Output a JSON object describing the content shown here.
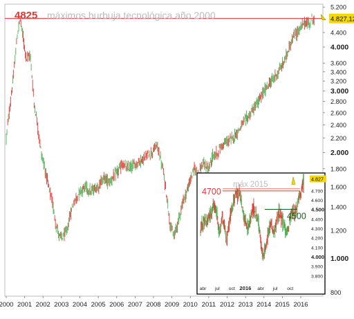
{
  "chart_data": [
    {
      "type": "candlestick",
      "scale": "log",
      "ylim": [
        780,
        5300
      ],
      "y_ticks": [
        "5.200",
        "4.800",
        "4.400",
        "4.000",
        "3.600",
        "3.400",
        "3.200",
        "3.000",
        "2.800",
        "2.600",
        "2.400",
        "2.200",
        "2.000",
        "1.800",
        "1.600",
        "1.400",
        "1.200",
        "1.000",
        "800"
      ],
      "y_ticks_bold": [
        "4.000",
        "3.000",
        "2.000",
        "1.000"
      ],
      "x_ticks": [
        "2000",
        "2001",
        "2002",
        "2003",
        "2004",
        "2005",
        "2006",
        "2007",
        "2008",
        "2009",
        "2010",
        "2011",
        "2012",
        "2013",
        "2014",
        "2015",
        "2016"
      ],
      "x_range": [
        2000.0,
        2016.75
      ],
      "approx_series": {
        "x": [
          2000.0,
          2000.2,
          2000.4,
          2000.6,
          2000.75,
          2000.9,
          2001.1,
          2001.3,
          2001.5,
          2001.7,
          2001.9,
          2002.1,
          2002.3,
          2002.5,
          2002.7,
          2002.9,
          2003.1,
          2003.3,
          2003.5,
          2003.7,
          2004.0,
          2004.3,
          2004.6,
          2005.0,
          2005.3,
          2005.6,
          2006.0,
          2006.3,
          2006.6,
          2007.0,
          2007.3,
          2007.6,
          2007.9,
          2008.2,
          2008.5,
          2008.8,
          2008.9,
          2009.1,
          2009.3,
          2009.6,
          2009.9,
          2010.2,
          2010.45,
          2010.7,
          2011.0,
          2011.2,
          2011.5,
          2011.7,
          2012.0,
          2012.3,
          2012.6,
          2012.9,
          2013.2,
          2013.5,
          2013.8,
          2014.1,
          2014.4,
          2014.7,
          2015.0,
          2015.2,
          2015.4,
          2015.6,
          2015.8,
          2016.0,
          2016.2,
          2016.4,
          2016.6,
          2016.75
        ],
        "y": [
          2200,
          2700,
          3300,
          4300,
          4825,
          4300,
          3700,
          3800,
          2800,
          2400,
          2000,
          1800,
          1600,
          1450,
          1250,
          1150,
          1150,
          1200,
          1350,
          1450,
          1550,
          1600,
          1550,
          1600,
          1700,
          1650,
          1750,
          1850,
          1800,
          1850,
          1900,
          1950,
          2000,
          2100,
          1800,
          1400,
          1250,
          1150,
          1250,
          1450,
          1600,
          1800,
          1750,
          1850,
          1800,
          1950,
          2000,
          2100,
          2150,
          2200,
          2300,
          2450,
          2550,
          2700,
          2850,
          3050,
          3200,
          3350,
          3550,
          3750,
          4050,
          4250,
          4400,
          4550,
          4700,
          4650,
          4800,
          4827
        ]
      },
      "reference_line": {
        "value": 4825,
        "color": "#e53935"
      },
      "annotation": {
        "value_label": "4825",
        "text": "máximos burbuja tecnológica año 2000"
      },
      "price_marker": {
        "label": "4.827,12",
        "color": "#f5d800"
      }
    },
    {
      "type": "candlestick",
      "ylim": [
        3740,
        4860
      ],
      "y_ticks": [
        "4.827",
        "4.700",
        "4.600",
        "4.500",
        "4.400",
        "4.300",
        "4.200",
        "4.100",
        "4.000",
        "3.900",
        "3.800"
      ],
      "y_ticks_bold": [
        "4.500",
        "4.000"
      ],
      "x_ticks": [
        "abr",
        "jul",
        "oct",
        "2016",
        "abr",
        "jul",
        "oct"
      ],
      "x_ticks_bold": [
        "2016"
      ],
      "approx_series": {
        "x": [
          0.0,
          0.4,
          0.8,
          1.2,
          1.6,
          2.0,
          2.3,
          2.6,
          2.9,
          3.2,
          3.4,
          3.6,
          3.8,
          4.0,
          4.3,
          4.6,
          4.9,
          5.2,
          5.5,
          5.8,
          6.1,
          6.4,
          6.7,
          7.0,
          7.3,
          7.6,
          8.0,
          8.3,
          8.6,
          8.9,
          9.2,
          9.5,
          9.8,
          10.1,
          10.4,
          10.7,
          11.0,
          11.3,
          11.6,
          11.9,
          12.2,
          12.5,
          12.8,
          13.1,
          13.4,
          13.7,
          14.0,
          14.3,
          14.6,
          14.9,
          15.2,
          15.5,
          15.8,
          16.1,
          16.4,
          16.7,
          17.0,
          17.3,
          17.6,
          17.9,
          18.2,
          18.5,
          18.8,
          19.1,
          19.4,
          19.7,
          20.0,
          20.3,
          20.6,
          20.9,
          21.2,
          21.5
        ],
        "y": [
          4300,
          4350,
          4400,
          4380,
          4420,
          4450,
          4480,
          4520,
          4550,
          4500,
          4450,
          4350,
          4300,
          4250,
          4380,
          4400,
          4350,
          4250,
          4200,
          4300,
          4400,
          4480,
          4550,
          4600,
          4700,
          4650,
          4680,
          4600,
          4550,
          4450,
          4400,
          4350,
          4300,
          4350,
          4420,
          4500,
          4520,
          4470,
          4430,
          4400,
          4300,
          4150,
          4050,
          4020,
          4100,
          4150,
          4250,
          4300,
          4350,
          4280,
          4250,
          4300,
          4380,
          4450,
          4470,
          4420,
          4380,
          4350,
          4300,
          4250,
          4320,
          4400,
          4450,
          4480,
          4450,
          4470,
          4550,
          4600,
          4650,
          4700,
          4750,
          4800
        ]
      },
      "reference_lines": [
        {
          "label": "4700",
          "value": 4700,
          "color": "#e53935"
        },
        {
          "label": "4500",
          "value": 4505,
          "color": "#1b5e20"
        }
      ],
      "annotation": {
        "text": "máx 2015",
        "value": 4722
      },
      "price_marker": {
        "label": "4.827",
        "color": "#f5d800"
      }
    }
  ]
}
